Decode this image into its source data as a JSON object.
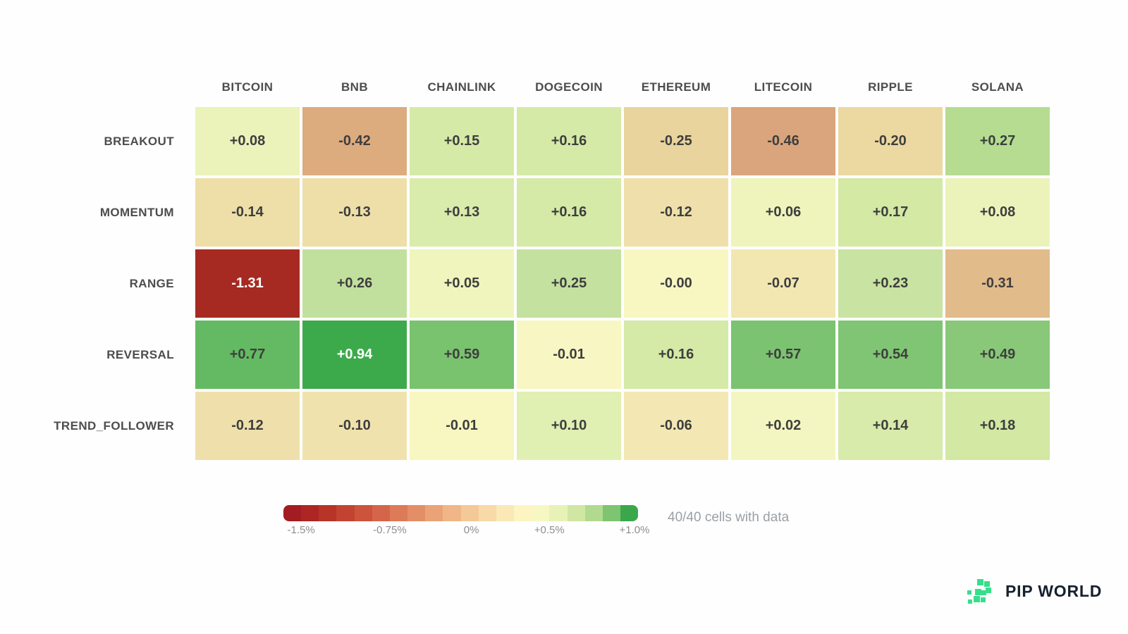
{
  "chart_data": {
    "type": "heatmap",
    "columns": [
      "BITCOIN",
      "BNB",
      "CHAINLINK",
      "DOGECOIN",
      "ETHEREUM",
      "LITECOIN",
      "RIPPLE",
      "SOLANA"
    ],
    "rows": [
      "BREAKOUT",
      "MOMENTUM",
      "RANGE",
      "REVERSAL",
      "TREND_FOLLOWER"
    ],
    "values": [
      [
        0.08,
        -0.42,
        0.15,
        0.16,
        -0.25,
        -0.46,
        -0.2,
        0.27
      ],
      [
        -0.14,
        -0.13,
        0.13,
        0.16,
        -0.12,
        0.06,
        0.17,
        0.08
      ],
      [
        -1.31,
        0.26,
        0.05,
        0.25,
        -0.0,
        -0.07,
        0.23,
        -0.31
      ],
      [
        0.77,
        0.94,
        0.59,
        -0.01,
        0.16,
        0.57,
        0.54,
        0.49
      ],
      [
        -0.12,
        -0.1,
        -0.01,
        0.1,
        -0.06,
        0.02,
        0.14,
        0.18
      ]
    ],
    "cell_labels": [
      [
        "+0.08",
        "-0.42",
        "+0.15",
        "+0.16",
        "-0.25",
        "-0.46",
        "-0.20",
        "+0.27"
      ],
      [
        "-0.14",
        "-0.13",
        "+0.13",
        "+0.16",
        "-0.12",
        "+0.06",
        "+0.17",
        "+0.08"
      ],
      [
        "-1.31",
        "+0.26",
        "+0.05",
        "+0.25",
        "-0.00",
        "-0.07",
        "+0.23",
        "-0.31"
      ],
      [
        "+0.77",
        "+0.94",
        "+0.59",
        "-0.01",
        "+0.16",
        "+0.57",
        "+0.54",
        "+0.49"
      ],
      [
        "-0.12",
        "-0.10",
        "-0.01",
        "+0.10",
        "-0.06",
        "+0.02",
        "+0.14",
        "+0.18"
      ]
    ],
    "cell_colors": [
      [
        "#ebf3ba",
        "#dcab7e",
        "#d6eaa7",
        "#d5eaa6",
        "#e9d49e",
        "#daa57c",
        "#ecd8a1",
        "#b5dc90"
      ],
      [
        "#eedea8",
        "#eedfa9",
        "#d9ecac",
        "#d5eaa6",
        "#efe0ab",
        "#eef4bb",
        "#d3e9a4",
        "#ebf3ba"
      ],
      [
        "#a62a22",
        "#c2e09d",
        "#eff5bd",
        "#c4e19f",
        "#f8f7c2",
        "#f2e7b1",
        "#c8e3a2",
        "#e2bb8b"
      ],
      [
        "#63ba62",
        "#3caa4b",
        "#79c26e",
        "#f8f7c3",
        "#d5eaa6",
        "#7bc370",
        "#80c573",
        "#89c879"
      ],
      [
        "#efe0ab",
        "#f0e2ad",
        "#f8f6c1",
        "#e0efb2",
        "#f3e8b3",
        "#f3f6c0",
        "#d8ebaa",
        "#d2e8a3"
      ]
    ],
    "white_text_cells": [
      [
        2,
        0
      ],
      [
        3,
        1
      ]
    ],
    "colorbar": {
      "range_min": "-1.5%",
      "range_max": "+1.0%",
      "segments": [
        "#a31c22",
        "#ad2623",
        "#b73427",
        "#c24331",
        "#cc533c",
        "#d5654a",
        "#dd7a58",
        "#e48e68",
        "#eaa277",
        "#f0b687",
        "#f4c997",
        "#f7daa7",
        "#fae9b6",
        "#fcf5c1",
        "#f7f7c3",
        "#e9f2b6",
        "#d0e7a4",
        "#b2da8e",
        "#7fc471",
        "#3aa74c"
      ],
      "ticks": [
        {
          "label": "-1.5%",
          "pos": 0.05
        },
        {
          "label": "-0.75%",
          "pos": 0.3
        },
        {
          "label": "0%",
          "pos": 0.53
        },
        {
          "label": "+0.5%",
          "pos": 0.75
        },
        {
          "label": "+1.0%",
          "pos": 0.99
        }
      ]
    },
    "status_text": "40/40 cells with data"
  },
  "branding": {
    "logo_text": "PIP WORLD",
    "logo_color": "#35df8b"
  }
}
